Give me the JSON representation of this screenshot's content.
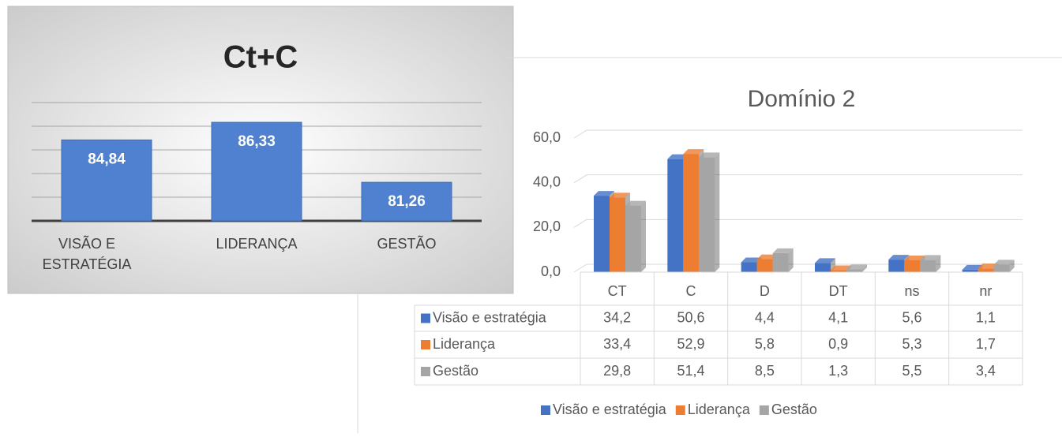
{
  "chart_data": [
    {
      "type": "bar",
      "title": "Ct+C",
      "categories": [
        "VISÃO E ESTRATÉGIA",
        "LIDERANÇA",
        "GESTÃO"
      ],
      "values": [
        84.84,
        86.33,
        81.26
      ],
      "value_labels": [
        "84,84",
        "86,33",
        "81,26"
      ],
      "color": "#4f81d0",
      "ylim": [
        78,
        88
      ],
      "yticks": [
        78,
        80,
        82,
        84,
        86,
        88
      ],
      "grid": true
    },
    {
      "type": "bar3d",
      "title": "Domínio 2",
      "categories": [
        "CT",
        "C",
        "D",
        "DT",
        "ns",
        "nr"
      ],
      "series": [
        {
          "name": "Visão e estratégia",
          "color": "#4472c4",
          "values": [
            34.2,
            50.6,
            4.4,
            4.1,
            5.6,
            1.1
          ],
          "value_labels": [
            "34,2",
            "50,6",
            "4,4",
            "4,1",
            "5,6",
            "1,1"
          ]
        },
        {
          "name": "Liderança",
          "color": "#ed7d31",
          "values": [
            33.4,
            52.9,
            5.8,
            0.9,
            5.3,
            1.7
          ],
          "value_labels": [
            "33,4",
            "52,9",
            "5,8",
            "0,9",
            "5,3",
            "1,7"
          ]
        },
        {
          "name": "Gestão",
          "color": "#a5a5a5",
          "values": [
            29.8,
            51.4,
            8.5,
            1.3,
            5.5,
            3.4
          ],
          "value_labels": [
            "29,8",
            "51,4",
            "8,5",
            "1,3",
            "5,5",
            "3,4"
          ]
        }
      ],
      "ylim": [
        0,
        60
      ],
      "yticks": [
        {
          "value": 0,
          "label": "0,0"
        },
        {
          "value": 20,
          "label": "20,0"
        },
        {
          "value": 40,
          "label": "40,0"
        },
        {
          "value": 60,
          "label": "60,0"
        }
      ],
      "grid": true,
      "legend": "bottom",
      "data_table": true
    }
  ]
}
